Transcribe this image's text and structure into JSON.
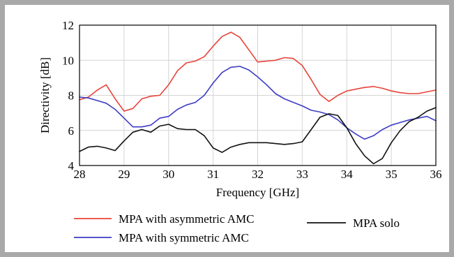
{
  "chart_data": {
    "type": "line",
    "xlabel": "Frequency [GHz]",
    "ylabel": "Directivity [dB]",
    "xlim": [
      28,
      36
    ],
    "ylim": [
      4,
      12
    ],
    "xticks": [
      "28",
      "29",
      "30",
      "31",
      "32",
      "33",
      "34",
      "35",
      "36"
    ],
    "yticks": [
      "4",
      "6",
      "8",
      "10",
      "12"
    ],
    "grid": true,
    "legend_position": "bottom",
    "series": [
      {
        "name": "MPA with asymmetric AMC",
        "color": "#e8433a",
        "x": [
          28.0,
          28.2,
          28.4,
          28.6,
          28.8,
          29.0,
          29.2,
          29.4,
          29.6,
          29.8,
          30.0,
          30.2,
          30.4,
          30.6,
          30.8,
          31.0,
          31.2,
          31.4,
          31.6,
          31.8,
          32.0,
          32.2,
          32.4,
          32.6,
          32.8,
          33.0,
          33.2,
          33.4,
          33.6,
          33.8,
          34.0,
          34.2,
          34.4,
          34.6,
          34.8,
          35.0,
          35.2,
          35.4,
          35.6,
          35.8,
          36.0
        ],
        "values": [
          7.75,
          7.9,
          8.3,
          8.6,
          7.8,
          7.1,
          7.25,
          7.8,
          7.95,
          8.0,
          8.6,
          9.4,
          9.85,
          9.95,
          10.2,
          10.8,
          11.35,
          11.6,
          11.3,
          10.6,
          9.9,
          9.95,
          10.0,
          10.15,
          10.1,
          9.7,
          8.9,
          8.05,
          7.65,
          8.0,
          8.25,
          8.35,
          8.45,
          8.5,
          8.4,
          8.25,
          8.15,
          8.1,
          8.1,
          8.2,
          8.3
        ]
      },
      {
        "name": "MPA with symmetric AMC",
        "color": "#3c3cc4",
        "x": [
          28.0,
          28.2,
          28.4,
          28.6,
          28.8,
          29.0,
          29.2,
          29.4,
          29.6,
          29.8,
          30.0,
          30.2,
          30.4,
          30.6,
          30.8,
          31.0,
          31.2,
          31.4,
          31.6,
          31.8,
          32.0,
          32.2,
          32.4,
          32.6,
          32.8,
          33.0,
          33.2,
          33.4,
          33.6,
          33.8,
          34.0,
          34.2,
          34.4,
          34.6,
          34.8,
          35.0,
          35.2,
          35.4,
          35.6,
          35.8,
          36.0
        ],
        "values": [
          7.9,
          7.85,
          7.7,
          7.55,
          7.2,
          6.7,
          6.2,
          6.2,
          6.3,
          6.7,
          6.8,
          7.2,
          7.45,
          7.6,
          8.0,
          8.7,
          9.3,
          9.6,
          9.65,
          9.45,
          9.05,
          8.6,
          8.1,
          7.8,
          7.6,
          7.4,
          7.15,
          7.05,
          6.9,
          6.6,
          6.15,
          5.8,
          5.5,
          5.7,
          6.05,
          6.3,
          6.45,
          6.6,
          6.7,
          6.8,
          6.55
        ]
      },
      {
        "name": "MPA solo",
        "color": "#111111",
        "x": [
          28.0,
          28.2,
          28.4,
          28.6,
          28.8,
          29.0,
          29.2,
          29.4,
          29.6,
          29.8,
          30.0,
          30.2,
          30.4,
          30.6,
          30.8,
          31.0,
          31.2,
          31.4,
          31.6,
          31.8,
          32.0,
          32.2,
          32.4,
          32.6,
          32.8,
          33.0,
          33.2,
          33.4,
          33.6,
          33.8,
          34.0,
          34.2,
          34.4,
          34.6,
          34.8,
          35.0,
          35.2,
          35.4,
          35.6,
          35.8,
          36.0
        ],
        "values": [
          4.8,
          5.05,
          5.1,
          5.0,
          4.85,
          5.4,
          5.9,
          6.05,
          5.9,
          6.25,
          6.35,
          6.1,
          6.05,
          6.05,
          5.7,
          5.0,
          4.75,
          5.05,
          5.2,
          5.3,
          5.3,
          5.3,
          5.25,
          5.2,
          5.25,
          5.35,
          6.05,
          6.75,
          6.95,
          6.85,
          6.15,
          5.25,
          4.55,
          4.1,
          4.4,
          5.3,
          6.0,
          6.5,
          6.75,
          7.1,
          7.3
        ]
      }
    ]
  }
}
